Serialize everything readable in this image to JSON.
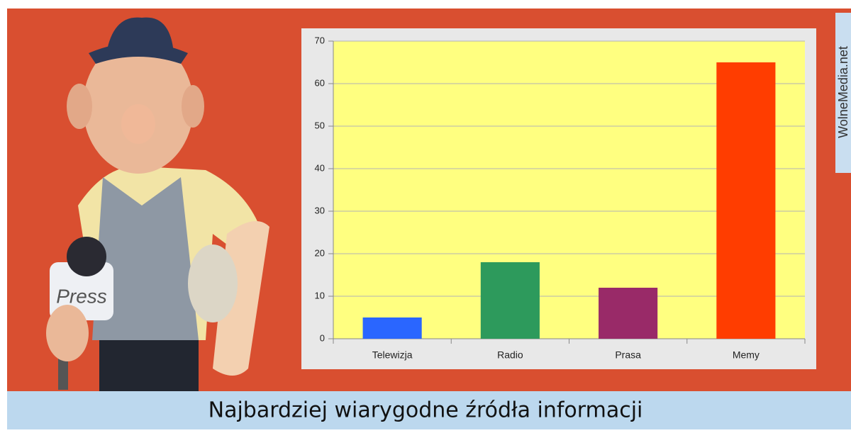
{
  "chart_data": {
    "type": "bar",
    "title": "Najbardziej wiarygodne źródła informacji",
    "categories": [
      "Telewizja",
      "Radio",
      "Prasa",
      "Memy"
    ],
    "values": [
      5,
      18,
      12,
      65
    ],
    "colors": [
      "#2a66ff",
      "#2d9a5c",
      "#992a68",
      "#ff3d00"
    ],
    "ylim": [
      0,
      70
    ],
    "yticks": [
      0,
      10,
      20,
      30,
      40,
      50,
      60,
      70
    ],
    "grid": true
  },
  "watermark": "WolneMedia.net",
  "microphone_label": "Press"
}
